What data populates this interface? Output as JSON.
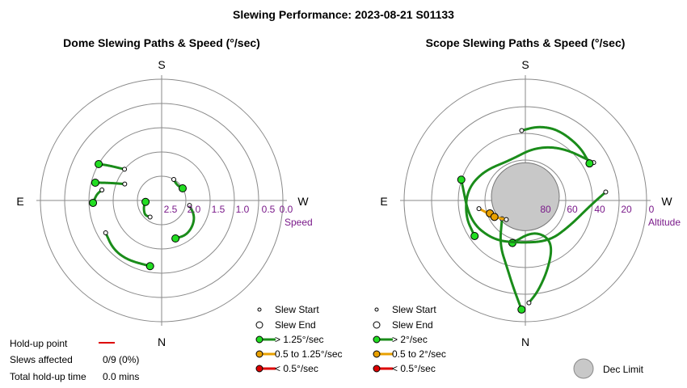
{
  "title": "Slewing Performance: 2023-08-21 S01133",
  "colors": {
    "fast": "#1a8c1a",
    "fast_marker": "#22dd22",
    "medium": "#e8a000",
    "slow": "#dd0000",
    "ring": "#8a8a8a",
    "dec_limit": "#c8c8c8"
  },
  "chart_data": [
    {
      "type": "polar",
      "title": "Dome Slewing Paths & Speed (°/sec)",
      "directions": {
        "top": "S",
        "bottom": "N",
        "left": "E",
        "right": "W"
      },
      "radial_axis_label": "Speed",
      "radial_ticks": [
        "2.5",
        "2.0",
        "1.5",
        "1.0",
        "0.5",
        "0.0"
      ],
      "radial_tick_values": [
        2.5,
        2.0,
        1.5,
        1.0,
        0.5,
        0.0
      ],
      "r_range": [
        3.0,
        0.0
      ],
      "grid": true,
      "legend": {
        "start": "Slew Start",
        "end": "Slew End",
        "fast": "> 1.25°/sec",
        "medium": "0.5 to 1.25°/sec",
        "slow": "< 0.5°/sec"
      },
      "paths": [
        {
          "speed": "fast",
          "start": [
            -50,
            1.8
          ],
          "end": [
            -60,
            1.2
          ],
          "points": [
            [
              -50,
              1.8
            ],
            [
              -54,
              1.6
            ],
            [
              -57,
              1.4
            ],
            [
              -60,
              1.2
            ]
          ]
        },
        {
          "speed": "fast",
          "start": [
            -66,
            2.0
          ],
          "end": [
            -75,
            1.3
          ],
          "points": [
            [
              -66,
              2.0
            ],
            [
              -70,
              1.75
            ],
            [
              -73,
              1.5
            ],
            [
              -75,
              1.3
            ]
          ]
        },
        {
          "speed": "fast",
          "start": [
            -80,
            1.5
          ],
          "end": [
            -92,
            1.3
          ],
          "points": [
            [
              -80,
              1.5
            ],
            [
              -84,
              1.4
            ],
            [
              -88,
              1.35
            ],
            [
              -92,
              1.3
            ]
          ]
        },
        {
          "speed": "fast",
          "start": [
            -145,
            2.5
          ],
          "end": [
            -95,
            2.6
          ],
          "points": [
            [
              -145,
              2.5
            ],
            [
              -132,
              2.45
            ],
            [
              -118,
              2.5
            ],
            [
              -105,
              2.55
            ],
            [
              -95,
              2.6
            ]
          ]
        },
        {
          "speed": "fast",
          "start": [
            100,
            2.3
          ],
          "end": [
            160,
            2.0
          ],
          "points": [
            [
              100,
              2.3
            ],
            [
              115,
              2.1
            ],
            [
              130,
              2.0
            ],
            [
              145,
              1.95
            ],
            [
              160,
              2.0
            ]
          ]
        },
        {
          "speed": "fast",
          "start": [
            -120,
            1.4
          ],
          "end": [
            -170,
            1.35
          ],
          "points": [
            [
              -120,
              1.4
            ],
            [
              -135,
              1.3
            ],
            [
              -150,
              1.3
            ],
            [
              -170,
              1.35
            ]
          ]
        },
        {
          "speed": "fast",
          "start": [
            30,
            2.4
          ],
          "end": [
            60,
            2.4
          ],
          "points": [
            [
              30,
              2.4
            ],
            [
              40,
              2.45
            ],
            [
              50,
              2.45
            ],
            [
              60,
              2.4
            ]
          ]
        }
      ]
    },
    {
      "type": "polar",
      "title": "Scope Slewing Paths & Speed (°/sec)",
      "directions": {
        "top": "S",
        "bottom": "N",
        "left": "E",
        "right": "W"
      },
      "radial_axis_label": "Altitude",
      "radial_ticks": [
        "80",
        "60",
        "40",
        "20",
        "0"
      ],
      "radial_tick_values": [
        80,
        60,
        40,
        20,
        0
      ],
      "r_range": [
        90,
        0
      ],
      "grid": true,
      "dec_limit_label": "Dec Limit",
      "dec_limit": {
        "az": 0,
        "alt": 62,
        "radius_alt": 22
      },
      "legend": {
        "start": "Slew Start",
        "end": "Slew End",
        "fast": "> 2°/sec",
        "medium": "0.5 to 2°/sec",
        "slow": "< 0.5°/sec"
      },
      "paths": [
        {
          "speed": "fast",
          "start": [
            178,
            14
          ],
          "end": [
            -163,
            57
          ],
          "points": [
            [
              178,
              14
            ],
            [
              172,
              22
            ],
            [
              162,
              36
            ],
            [
              150,
              50
            ],
            [
              150,
              60
            ],
            [
              170,
              66
            ],
            [
              -163,
              57
            ]
          ]
        },
        {
          "speed": "fast",
          "start": [
            -128,
            68
          ],
          "end": [
            -178,
            9
          ],
          "points": [
            [
              -128,
              68
            ],
            [
              -150,
              52
            ],
            [
              -165,
              38
            ],
            [
              -172,
              25
            ],
            [
              -178,
              9
            ]
          ]
        },
        {
          "speed": "fast",
          "start": [
            84,
            30
          ],
          "end": [
            -72,
            40
          ],
          "points": [
            [
              84,
              30
            ],
            [
              95,
              42
            ],
            [
              120,
              52
            ],
            [
              150,
              55
            ],
            [
              -170,
              58
            ],
            [
              -140,
              52
            ],
            [
              -110,
              46
            ],
            [
              -72,
              40
            ]
          ]
        },
        {
          "speed": "fast",
          "start": [
            61,
            32
          ],
          "end": [
            -125,
            44
          ],
          "points": [
            [
              61,
              32
            ],
            [
              35,
              42
            ],
            [
              10,
              50
            ],
            [
              -20,
              58
            ],
            [
              -55,
              52
            ],
            [
              -80,
              46
            ],
            [
              -105,
              44
            ],
            [
              -125,
              44
            ]
          ]
        },
        {
          "speed": "fast",
          "start": [
            -3,
            38
          ],
          "end": [
            60,
            35
          ],
          "points": [
            [
              -3,
              38
            ],
            [
              10,
              34
            ],
            [
              25,
              32
            ],
            [
              45,
              33
            ],
            [
              60,
              35
            ]
          ]
        },
        {
          "speed": "medium",
          "start": [
            -100,
            55
          ],
          "end": [
            -110,
            62
          ],
          "points": [
            [
              -100,
              55
            ],
            [
              -104,
              58
            ],
            [
              -108,
              60
            ],
            [
              -110,
              62
            ]
          ]
        },
        {
          "speed": "medium",
          "start": [
            -135,
            70
          ],
          "end": [
            -118,
            64
          ],
          "points": [
            [
              -135,
              70
            ],
            [
              -128,
              68
            ],
            [
              -122,
              66
            ],
            [
              -118,
              64
            ]
          ]
        }
      ]
    }
  ],
  "stats": {
    "holdup_label": "Hold-up point",
    "slews_label": "Slews affected",
    "slews_value": "0/9 (0%)",
    "total_label": "Total hold-up time",
    "total_value": "0.0 mins"
  }
}
